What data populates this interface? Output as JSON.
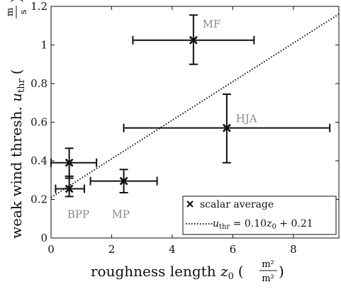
{
  "chart_data": {
    "type": "scatter",
    "xlabel": "roughness length z₀ (m²/m²)",
    "ylabel": "weak wind thresh. u_thr (m/s)",
    "xlim": [
      0,
      9.5
    ],
    "ylim": [
      0,
      1.2
    ],
    "xticks": [
      "0",
      "2",
      "4",
      "6",
      "8"
    ],
    "yticks": [
      "0",
      "0.2",
      "0.4",
      "0.6",
      "0.8",
      "1",
      "1.2"
    ],
    "grid": false,
    "legend_position": "bottom-right",
    "series": [
      {
        "name": "scalar average",
        "marker": "x",
        "points": [
          {
            "label": "MF",
            "x": 4.7,
            "y": 1.025,
            "xerr": [
              2.7,
              6.7
            ],
            "yerr": [
              0.9,
              1.155
            ]
          },
          {
            "label": "HJA",
            "x": 5.8,
            "y": 0.57,
            "xerr": [
              2.4,
              9.2
            ],
            "yerr": [
              0.39,
              0.745
            ]
          },
          {
            "label": "BPP",
            "x": 0.6,
            "y": 0.39,
            "xerr": [
              0.0,
              1.5
            ],
            "yerr": [
              0.31,
              0.465
            ]
          },
          {
            "label": "",
            "x": 0.6,
            "y": 0.255,
            "xerr": [
              0.15,
              1.1
            ],
            "yerr": [
              0.215,
              0.32
            ]
          },
          {
            "label": "MP",
            "x": 2.4,
            "y": 0.295,
            "xerr": [
              1.3,
              3.5
            ],
            "yerr": [
              0.235,
              0.355
            ]
          }
        ]
      }
    ],
    "fit_line": {
      "name": "u_thr = 0.10z₀ + 0.21",
      "slope": 0.1,
      "intercept": 0.21,
      "style": "dotted"
    },
    "site_labels": [
      {
        "text": "MF",
        "x": 5.0,
        "y": 1.09
      },
      {
        "text": "HJA",
        "x": 6.1,
        "y": 0.6
      },
      {
        "text": "BPP",
        "x": 0.9,
        "y": 0.105
      },
      {
        "text": "MP",
        "x": 2.3,
        "y": 0.105
      }
    ]
  },
  "legend": {
    "marker_label": "scalar average",
    "line_u": "u",
    "line_sub": "thr",
    "line_eq_pre": " = 0.10",
    "line_z": "z",
    "line_z_sub": "0",
    "line_eq_post": " + 0.21"
  },
  "axes_text": {
    "x_main": "roughness length ",
    "x_sym": "z",
    "x_sym_sub": "0",
    "x_unit_num": "m²",
    "x_unit_den": "m²",
    "y_main": "weak wind thresh. ",
    "y_sym": "u",
    "y_sym_sub": "thr",
    "y_unit_num": "m",
    "y_unit_den": "s"
  }
}
